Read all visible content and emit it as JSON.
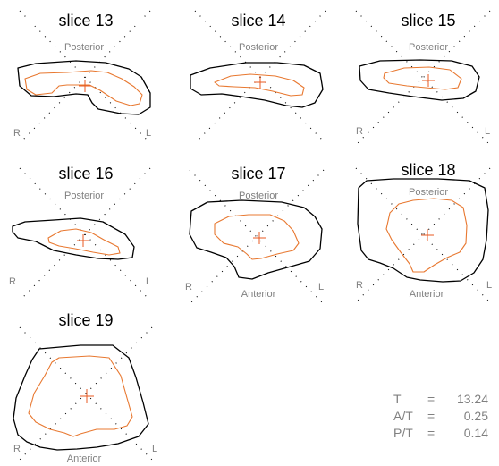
{
  "colors": {
    "outer_contour": "#000000",
    "inner_contour": "#e87830",
    "crosshair": "#e85a20",
    "label_gray": "#808080"
  },
  "slices": [
    {
      "title": "slice 13",
      "top_label": "Posterior",
      "bottom_label": "",
      "left_label": "R",
      "right_label": "L"
    },
    {
      "title": "slice 14",
      "top_label": "Posterior",
      "bottom_label": "",
      "left_label": "",
      "right_label": ""
    },
    {
      "title": "slice 15",
      "top_label": "Posterior",
      "bottom_label": "",
      "left_label": "R",
      "right_label": "L"
    },
    {
      "title": "slice 16",
      "top_label": "Posterior",
      "bottom_label": "",
      "left_label": "R",
      "right_label": "L"
    },
    {
      "title": "slice 17",
      "top_label": "Posterior",
      "bottom_label": "Anterior",
      "left_label": "R",
      "right_label": "L"
    },
    {
      "title": "slice 18",
      "top_label": "Posterior",
      "bottom_label": "Anterior",
      "left_label": "R",
      "right_label": "L"
    },
    {
      "title": "slice 19",
      "top_label": "",
      "bottom_label": "Anterior",
      "left_label": "R",
      "right_label": "L"
    }
  ],
  "stats": [
    {
      "label": "T",
      "eq": "=",
      "value": "13.24"
    },
    {
      "label": "A/T",
      "eq": "=",
      "value": "0.25"
    },
    {
      "label": "P/T",
      "eq": "=",
      "value": "0.14"
    }
  ]
}
